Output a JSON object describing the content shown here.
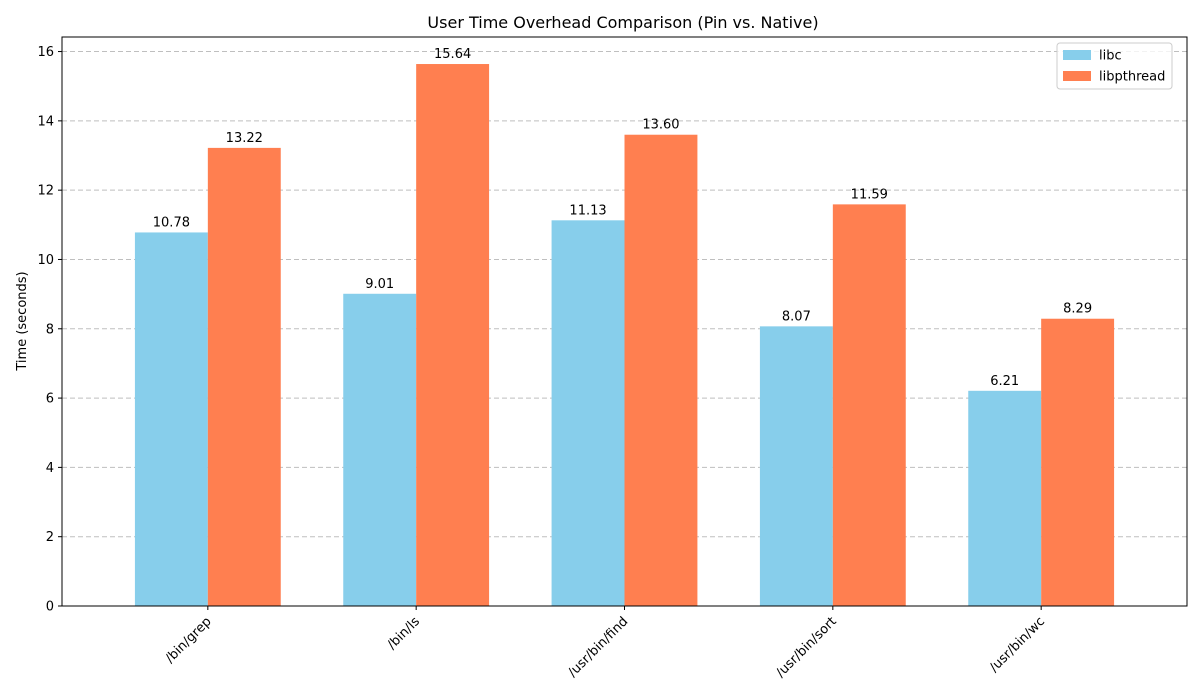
{
  "chart_data": {
    "type": "bar",
    "title": "User Time Overhead Comparison (Pin vs. Native)",
    "xlabel": "",
    "ylabel": "Time (seconds)",
    "categories": [
      "/bin/grep",
      "/bin/ls",
      "/usr/bin/find",
      "/usr/bin/sort",
      "/usr/bin/wc"
    ],
    "series": [
      {
        "name": "libc",
        "values": [
          10.78,
          9.01,
          11.13,
          8.07,
          6.21
        ],
        "labels": [
          "10.78",
          "9.01",
          "11.13",
          "8.07",
          "6.21"
        ],
        "color": "#87CEEB"
      },
      {
        "name": "libpthread",
        "values": [
          13.22,
          15.64,
          13.6,
          11.59,
          8.29
        ],
        "labels": [
          "13.22",
          "15.64",
          "13.60",
          "11.59",
          "8.29"
        ],
        "color": "#FF7F50"
      }
    ],
    "ylim": [
      0,
      16.42
    ],
    "yticks": [
      0,
      2,
      4,
      6,
      8,
      10,
      12,
      14,
      16
    ],
    "grid": "y-dashed",
    "legend_position": "top-right"
  }
}
